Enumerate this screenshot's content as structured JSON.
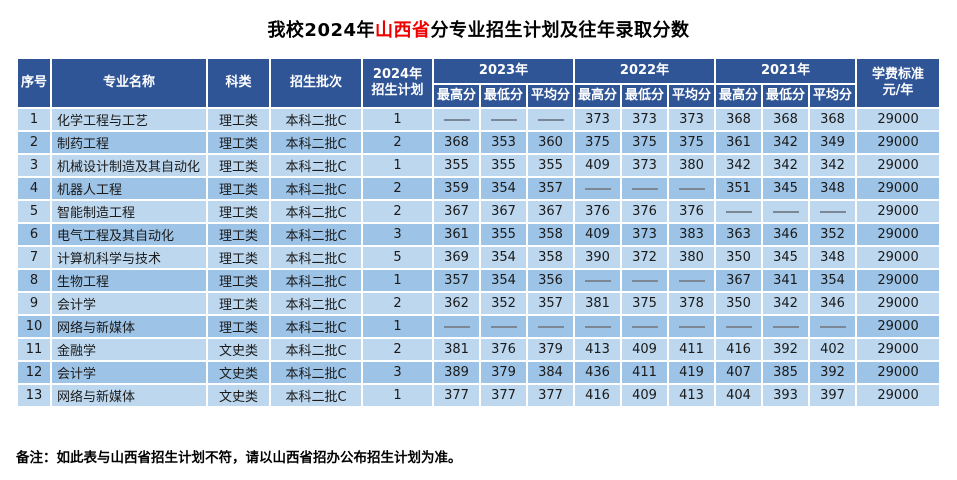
{
  "title": {
    "prefix": "我校2024年",
    "highlight": "山西省",
    "suffix": "分专业招生计划及往年录取分数"
  },
  "colors": {
    "header_bg": "#2f5597",
    "row_odd": "#bdd7ee",
    "row_even": "#9dc3e6",
    "title_highlight": "#ee0000",
    "dash": "#7c8796"
  },
  "table": {
    "headers": {
      "no": "序号",
      "major": "专业名称",
      "category": "科类",
      "batch": "招生批次",
      "plan2024_line1": "2024年",
      "plan2024_line2": "招生计划",
      "year_groups": [
        "2023年",
        "2022年",
        "2021年"
      ],
      "score_cols": [
        "最高分",
        "最低分",
        "平均分"
      ],
      "tuition_line1": "学费标准",
      "tuition_line2": "元/年"
    },
    "rows": [
      {
        "no": "1",
        "major": "化学工程与工艺",
        "category": "理工类",
        "batch": "本科二批C",
        "plan": "1",
        "scores": [
          "—",
          "—",
          "—",
          "373",
          "373",
          "373",
          "368",
          "368",
          "368"
        ],
        "tuition": "29000"
      },
      {
        "no": "2",
        "major": "制药工程",
        "category": "理工类",
        "batch": "本科二批C",
        "plan": "2",
        "scores": [
          "368",
          "353",
          "360",
          "375",
          "375",
          "375",
          "361",
          "342",
          "349"
        ],
        "tuition": "29000"
      },
      {
        "no": "3",
        "major": "机械设计制造及其自动化",
        "category": "理工类",
        "batch": "本科二批C",
        "plan": "1",
        "scores": [
          "355",
          "355",
          "355",
          "409",
          "373",
          "380",
          "342",
          "342",
          "342"
        ],
        "tuition": "29000"
      },
      {
        "no": "4",
        "major": "机器人工程",
        "category": "理工类",
        "batch": "本科二批C",
        "plan": "2",
        "scores": [
          "359",
          "354",
          "357",
          "—",
          "—",
          "—",
          "351",
          "345",
          "348"
        ],
        "tuition": "29000"
      },
      {
        "no": "5",
        "major": "智能制造工程",
        "category": "理工类",
        "batch": "本科二批C",
        "plan": "2",
        "scores": [
          "367",
          "367",
          "367",
          "376",
          "376",
          "376",
          "—",
          "—",
          "—"
        ],
        "tuition": "29000"
      },
      {
        "no": "6",
        "major": "电气工程及其自动化",
        "category": "理工类",
        "batch": "本科二批C",
        "plan": "3",
        "scores": [
          "361",
          "355",
          "358",
          "409",
          "373",
          "383",
          "363",
          "346",
          "352"
        ],
        "tuition": "29000"
      },
      {
        "no": "7",
        "major": "计算机科学与技术",
        "category": "理工类",
        "batch": "本科二批C",
        "plan": "5",
        "scores": [
          "369",
          "354",
          "358",
          "390",
          "372",
          "380",
          "350",
          "345",
          "348"
        ],
        "tuition": "29000"
      },
      {
        "no": "8",
        "major": "生物工程",
        "category": "理工类",
        "batch": "本科二批C",
        "plan": "1",
        "scores": [
          "357",
          "354",
          "356",
          "—",
          "—",
          "—",
          "367",
          "341",
          "354"
        ],
        "tuition": "29000"
      },
      {
        "no": "9",
        "major": "会计学",
        "category": "理工类",
        "batch": "本科二批C",
        "plan": "2",
        "scores": [
          "362",
          "352",
          "357",
          "381",
          "375",
          "378",
          "350",
          "342",
          "346"
        ],
        "tuition": "29000"
      },
      {
        "no": "10",
        "major": "网络与新媒体",
        "category": "理工类",
        "batch": "本科二批C",
        "plan": "1",
        "scores": [
          "—",
          "—",
          "—",
          "—",
          "—",
          "—",
          "—",
          "—",
          "—"
        ],
        "tuition": "29000"
      },
      {
        "no": "11",
        "major": "金融学",
        "category": "文史类",
        "batch": "本科二批C",
        "plan": "2",
        "scores": [
          "381",
          "376",
          "379",
          "413",
          "409",
          "411",
          "416",
          "392",
          "402"
        ],
        "tuition": "29000"
      },
      {
        "no": "12",
        "major": "会计学",
        "category": "文史类",
        "batch": "本科二批C",
        "plan": "3",
        "scores": [
          "389",
          "379",
          "384",
          "436",
          "411",
          "419",
          "407",
          "385",
          "392"
        ],
        "tuition": "29000"
      },
      {
        "no": "13",
        "major": "网络与新媒体",
        "category": "文史类",
        "batch": "本科二批C",
        "plan": "1",
        "scores": [
          "377",
          "377",
          "377",
          "416",
          "409",
          "413",
          "404",
          "393",
          "397"
        ],
        "tuition": "29000"
      }
    ]
  },
  "footnote": "备注：如此表与山西省招生计划不符，请以山西省招办公布招生计划为准。"
}
